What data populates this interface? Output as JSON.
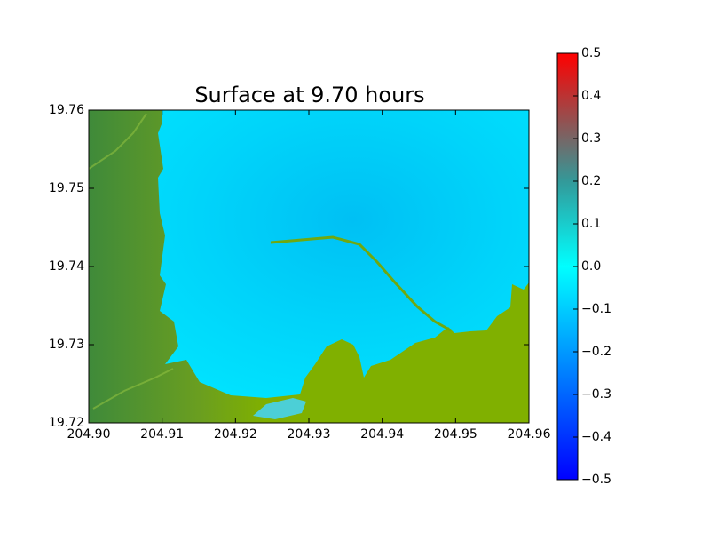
{
  "chart_data": {
    "type": "heatmap",
    "title": "Surface at 9.70 hours",
    "xlim": [
      204.9,
      204.96
    ],
    "xticks": [
      {
        "value": 204.9,
        "label": "204.90"
      },
      204.91,
      204.92,
      204.93,
      204.94,
      204.95,
      204.96
    ],
    "ylim": [
      19.72,
      19.76
    ],
    "yticks": [
      19.72,
      19.73,
      19.74,
      19.75,
      19.76
    ],
    "colorbar": {
      "lim": [
        -0.5,
        0.5
      ],
      "ticks": [
        {
          "value": -0.5,
          "label": "−0.5"
        },
        {
          "value": -0.4,
          "label": "−0.4"
        },
        {
          "value": -0.3,
          "label": "−0.3"
        },
        {
          "value": -0.2,
          "label": "−0.2"
        },
        {
          "value": -0.1,
          "label": "−0.1"
        },
        {
          "value": 0,
          "label": "0.0"
        },
        0.1,
        0.2,
        0.3,
        0.4,
        0.5
      ],
      "colormap": [
        {
          "value": -0.5,
          "color": "#0000ff"
        },
        {
          "value": 0,
          "color": "#00ffff"
        },
        {
          "value": 0.2,
          "color": "#339999"
        },
        {
          "value": 0.5,
          "color": "#ff0000"
        }
      ]
    }
  }
}
